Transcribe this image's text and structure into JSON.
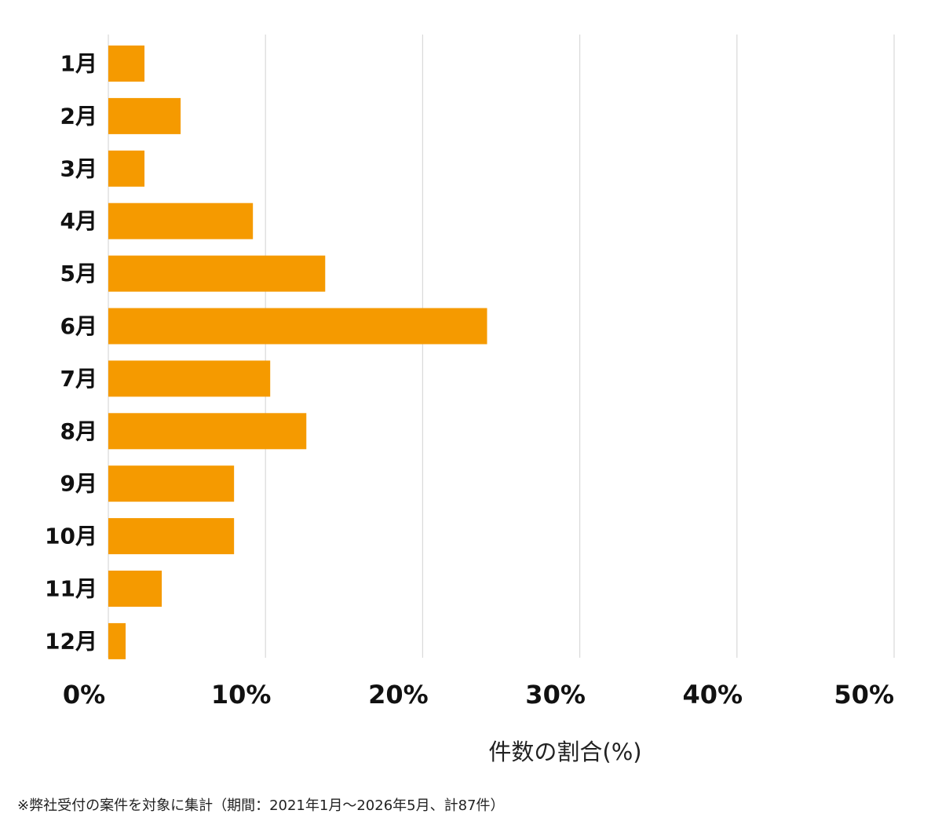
{
  "chart_data": {
    "type": "bar",
    "orientation": "horizontal",
    "categories": [
      "1月",
      "2月",
      "3月",
      "4月",
      "5月",
      "6月",
      "7月",
      "8月",
      "9月",
      "10月",
      "11月",
      "12月"
    ],
    "values": [
      2.3,
      4.6,
      2.3,
      9.2,
      13.8,
      24.1,
      10.3,
      12.6,
      8.0,
      8.0,
      3.4,
      1.1
    ],
    "xlim": [
      0,
      50
    ],
    "x_ticks": [
      0,
      10,
      20,
      30,
      40,
      50
    ],
    "x_tick_labels": [
      "0%",
      "10%",
      "20%",
      "30%",
      "40%",
      "50%"
    ],
    "xlabel": "件数の割合(%)",
    "ylabel": "",
    "title": "",
    "grid": true,
    "bar_color": "#F59A00",
    "grid_color": "#D9D9D9"
  },
  "footnote": "※弊社受付の案件を対象に集計（期間：2021年1月〜2026年5月、計87件）"
}
